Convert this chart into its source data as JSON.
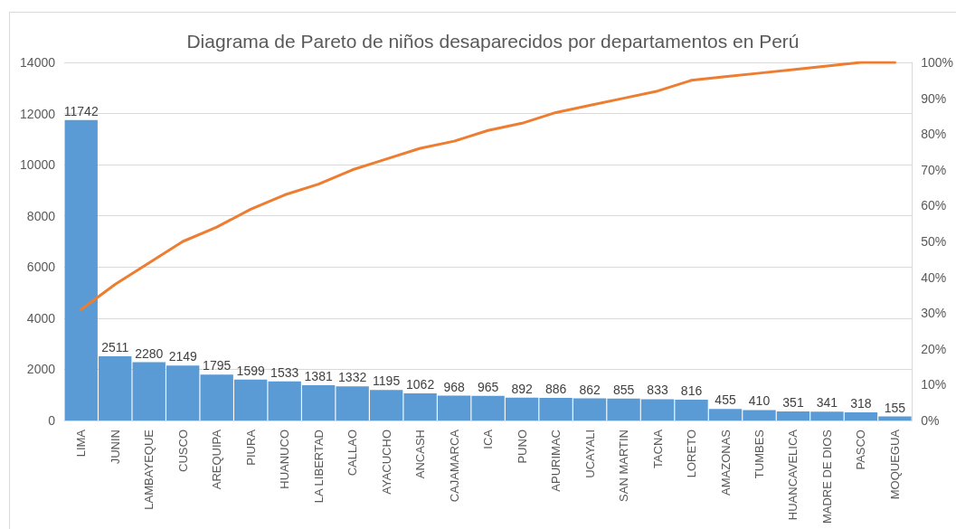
{
  "chart_data": {
    "type": "bar",
    "title": "Diagrama de Pareto de niños desaparecidos por departamentos en Perú",
    "categories": [
      "LIMA",
      "JUNIN",
      "LAMBAYEQUE",
      "CUSCO",
      "AREQUIPA",
      "PIURA",
      "HUANUCO",
      "LA LIBERTAD",
      "CALLAO",
      "AYACUCHO",
      "ANCASH",
      "CAJAMARCA",
      "ICA",
      "PUNO",
      "APURIMAC",
      "UCAYALI",
      "SAN MARTIN",
      "TACNA",
      "LORETO",
      "AMAZONAS",
      "TUMBES",
      "HUANCAVELICA",
      "MADRE DE DIOS",
      "PASCO",
      "MOQUEGUA"
    ],
    "series": [
      {
        "color": "#5b9bd5",
        "data_labels": true,
        "values": [
          11742,
          2511,
          2280,
          2149,
          1795,
          1599,
          1533,
          1381,
          1332,
          1195,
          1062,
          968,
          965,
          892,
          886,
          862,
          855,
          833,
          816,
          455,
          410,
          351,
          341,
          318,
          155
        ]
      },
      {
        "type": "line",
        "axis": "y2",
        "color": "#ed7d31",
        "values": [
          31,
          38,
          44,
          50,
          54,
          59,
          63,
          66,
          70,
          73,
          76,
          78,
          81,
          83,
          86,
          88,
          90,
          92,
          95,
          96,
          97,
          98,
          99,
          100,
          100
        ]
      }
    ],
    "ylim": [
      0,
      14000
    ],
    "yticks": [
      0,
      2000,
      4000,
      6000,
      8000,
      10000,
      12000,
      14000
    ],
    "y2lim": [
      0,
      100
    ],
    "y2ticks": [
      {
        "value": 0,
        "label": "0%"
      },
      {
        "value": 10,
        "label": "10%"
      },
      {
        "value": 20,
        "label": "20%"
      },
      {
        "value": 30,
        "label": "30%"
      },
      {
        "value": 40,
        "label": "40%"
      },
      {
        "value": 50,
        "label": "50%"
      },
      {
        "value": 60,
        "label": "60%"
      },
      {
        "value": 70,
        "label": "70%"
      },
      {
        "value": 80,
        "label": "80%"
      },
      {
        "value": 90,
        "label": "90%"
      },
      {
        "value": 100,
        "label": "100%"
      }
    ],
    "grid": "y",
    "marker": "none",
    "line_style": "solid"
  }
}
